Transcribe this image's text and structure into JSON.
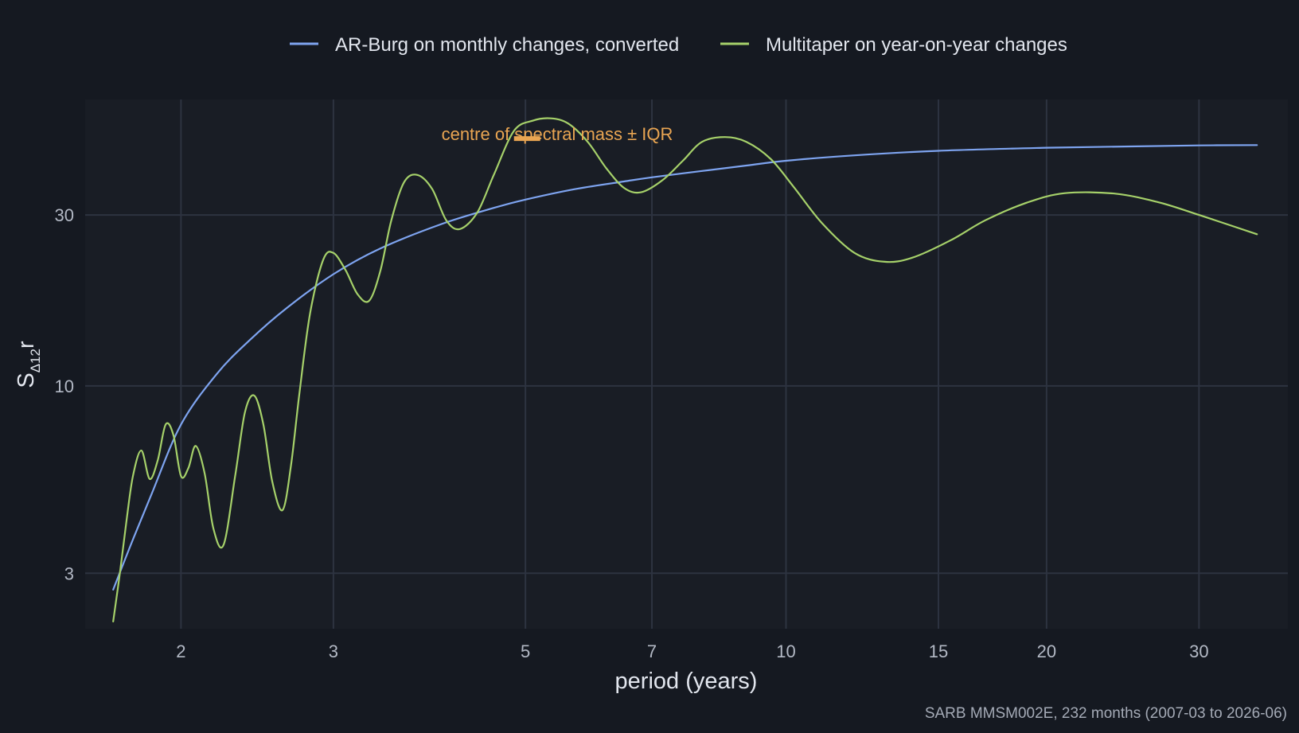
{
  "colors": {
    "background": "#151921",
    "panel": "#191d25",
    "grid": "#2d3340",
    "ar_burg": "#7ea4f0",
    "multitaper": "#a6d16a",
    "annotation": "#e9a552"
  },
  "chart_data": {
    "type": "line",
    "xlabel": "period (years)",
    "ylabel": "S",
    "ylabel_subscript": "Δ12",
    "ylabel_suffix": "r",
    "x_scale": "log",
    "y_scale": "log",
    "xlim": [
      1.55,
      38
    ],
    "ylim": [
      2.1,
      63
    ],
    "x_ticks": [
      2,
      3,
      5,
      7,
      10,
      15,
      20,
      30
    ],
    "x_tick_labels": [
      "2",
      "3",
      "5",
      "7",
      "10",
      "15",
      "20",
      "30"
    ],
    "y_ticks": [
      3,
      10,
      30
    ],
    "y_tick_labels": [
      "3",
      "10",
      "30"
    ],
    "grid": true,
    "legend_position": "top",
    "caption": "SARB MMSM002E, 232 months (2007-03 to 2026-06)",
    "annotation": {
      "text": "centre of spectral mass ± IQR",
      "x_low": 4.85,
      "x_high": 5.2,
      "y": 49
    },
    "series": [
      {
        "name": "AR-Burg on monthly changes, converted",
        "color": "#7ea4f0",
        "x": [
          1.67,
          1.75,
          1.85,
          2.0,
          2.2,
          2.4,
          2.65,
          3.0,
          3.4,
          4.0,
          4.6,
          5.0,
          5.7,
          6.5,
          7.0,
          8.0,
          9.0,
          10.0,
          12.0,
          15.0,
          20.0,
          25.0,
          30.0,
          35.0
        ],
        "values": [
          2.7,
          3.6,
          5.0,
          7.8,
          10.8,
          13.4,
          16.5,
          20.5,
          24.2,
          28.3,
          31.4,
          33.1,
          35.4,
          37.2,
          38.2,
          39.8,
          41.2,
          42.5,
          44.0,
          45.3,
          46.2,
          46.6,
          46.9,
          47.0
        ]
      },
      {
        "name": "Multitaper on year-on-year changes",
        "color": "#a6d16a",
        "x": [
          1.67,
          1.7,
          1.73,
          1.76,
          1.8,
          1.84,
          1.88,
          1.92,
          1.96,
          2.0,
          2.04,
          2.08,
          2.13,
          2.18,
          2.24,
          2.31,
          2.37,
          2.43,
          2.49,
          2.55,
          2.62,
          2.68,
          2.74,
          2.82,
          2.92,
          3.0,
          3.1,
          3.2,
          3.3,
          3.4,
          3.5,
          3.62,
          3.75,
          3.9,
          4.05,
          4.2,
          4.4,
          4.6,
          4.85,
          5.1,
          5.35,
          5.6,
          5.9,
          6.2,
          6.5,
          6.8,
          7.2,
          7.6,
          8.0,
          8.5,
          9.0,
          9.6,
          10.2,
          11.0,
          12.0,
          13.0,
          14.0,
          15.5,
          17.0,
          19.0,
          21.0,
          24.0,
          27.0,
          30.0,
          33.0,
          35.0
        ],
        "values": [
          2.2,
          3.0,
          4.2,
          5.6,
          6.6,
          5.5,
          6.2,
          7.8,
          7.3,
          5.6,
          5.9,
          6.8,
          5.7,
          4.0,
          3.6,
          5.6,
          8.4,
          9.4,
          7.8,
          5.4,
          4.5,
          6.0,
          9.5,
          16.0,
          22.5,
          23.5,
          21.0,
          18.0,
          17.3,
          21.0,
          29.0,
          37.0,
          38.8,
          35.5,
          29.0,
          27.4,
          30.5,
          39.0,
          51.5,
          55.0,
          55.8,
          54.0,
          48.0,
          40.5,
          35.7,
          34.7,
          37.5,
          42.5,
          48.0,
          49.5,
          48.0,
          43.0,
          36.0,
          28.5,
          23.5,
          22.2,
          22.8,
          25.5,
          29.0,
          32.5,
          34.5,
          34.4,
          32.5,
          30.0,
          27.8,
          26.5
        ]
      }
    ]
  }
}
